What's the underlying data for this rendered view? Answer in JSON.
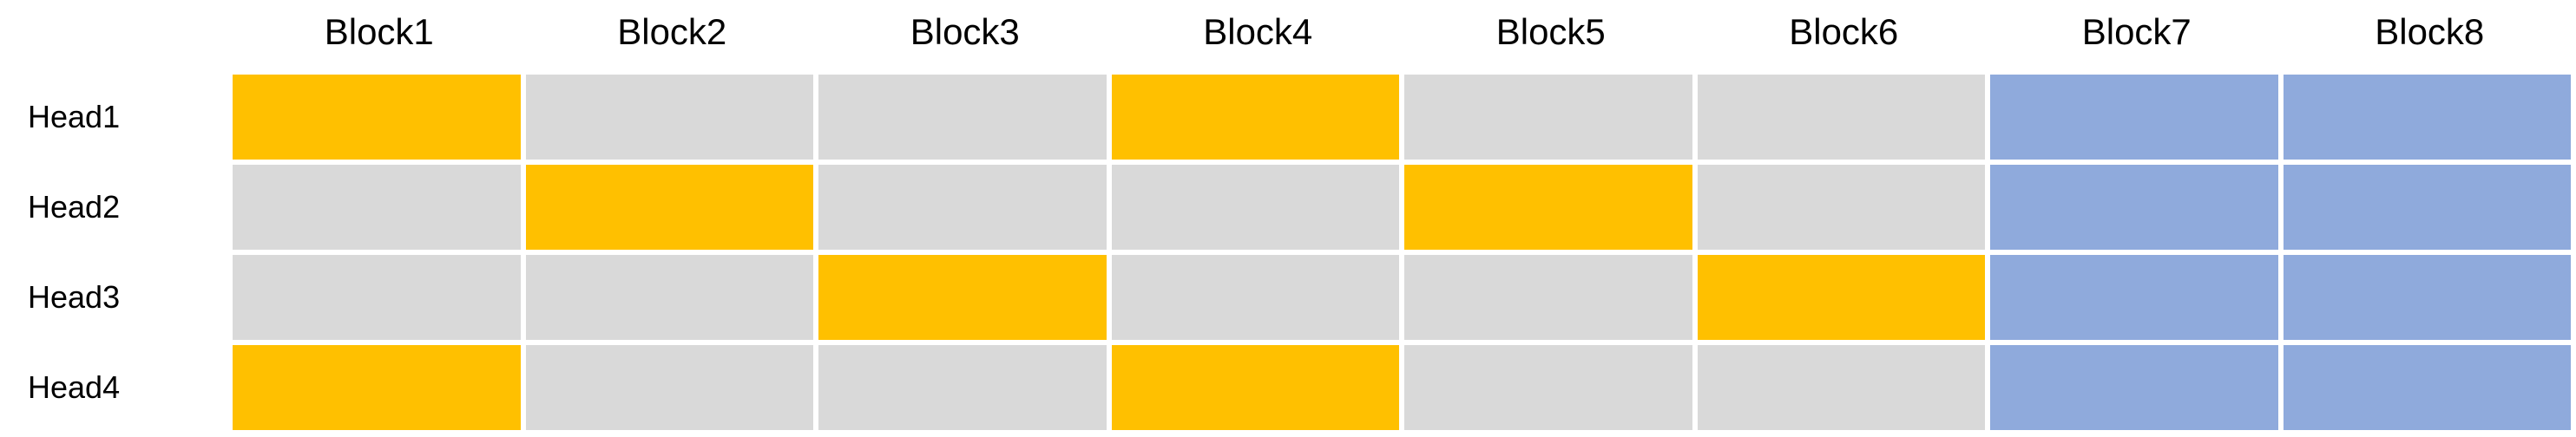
{
  "blocks": [
    "Block1",
    "Block2",
    "Block3",
    "Block4",
    "Block5",
    "Block6",
    "Block7",
    "Block8"
  ],
  "heads": [
    "Head1",
    "Head2",
    "Head3",
    "Head4"
  ],
  "colors": {
    "highlight": "#FFC000",
    "inactive": "#D9D9D9",
    "shared": "#8FAADC"
  },
  "grid": [
    [
      "highlight",
      "inactive",
      "inactive",
      "highlight",
      "inactive",
      "inactive",
      "shared",
      "shared"
    ],
    [
      "inactive",
      "highlight",
      "inactive",
      "inactive",
      "highlight",
      "inactive",
      "shared",
      "shared"
    ],
    [
      "inactive",
      "inactive",
      "highlight",
      "inactive",
      "inactive",
      "highlight",
      "shared",
      "shared"
    ],
    [
      "highlight",
      "inactive",
      "inactive",
      "highlight",
      "inactive",
      "inactive",
      "shared",
      "shared"
    ]
  ]
}
